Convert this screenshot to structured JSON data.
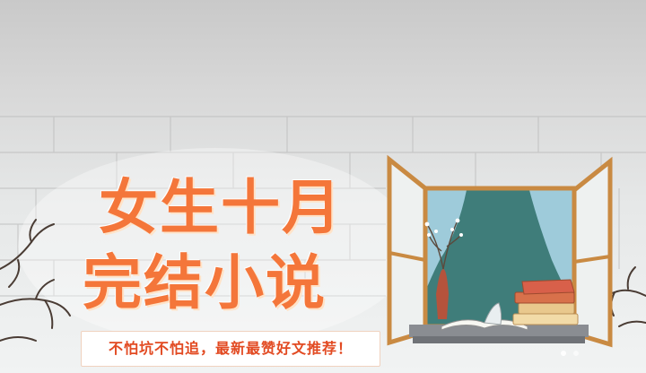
{
  "banner": {
    "title_line1": "女生十月",
    "title_line2": "完结小说",
    "tagline": "不怕坑不怕追，最新最赞好文推荐！"
  },
  "colors": {
    "title": "#f4763a",
    "tagline_text": "#e24a22",
    "window_frame": "#c98a42",
    "sky": "#3f7d7a",
    "curtain": "#a9d4e4"
  },
  "icons": [
    "vase-with-branches",
    "open-book",
    "stack-of-books",
    "bare-tree-branches"
  ]
}
